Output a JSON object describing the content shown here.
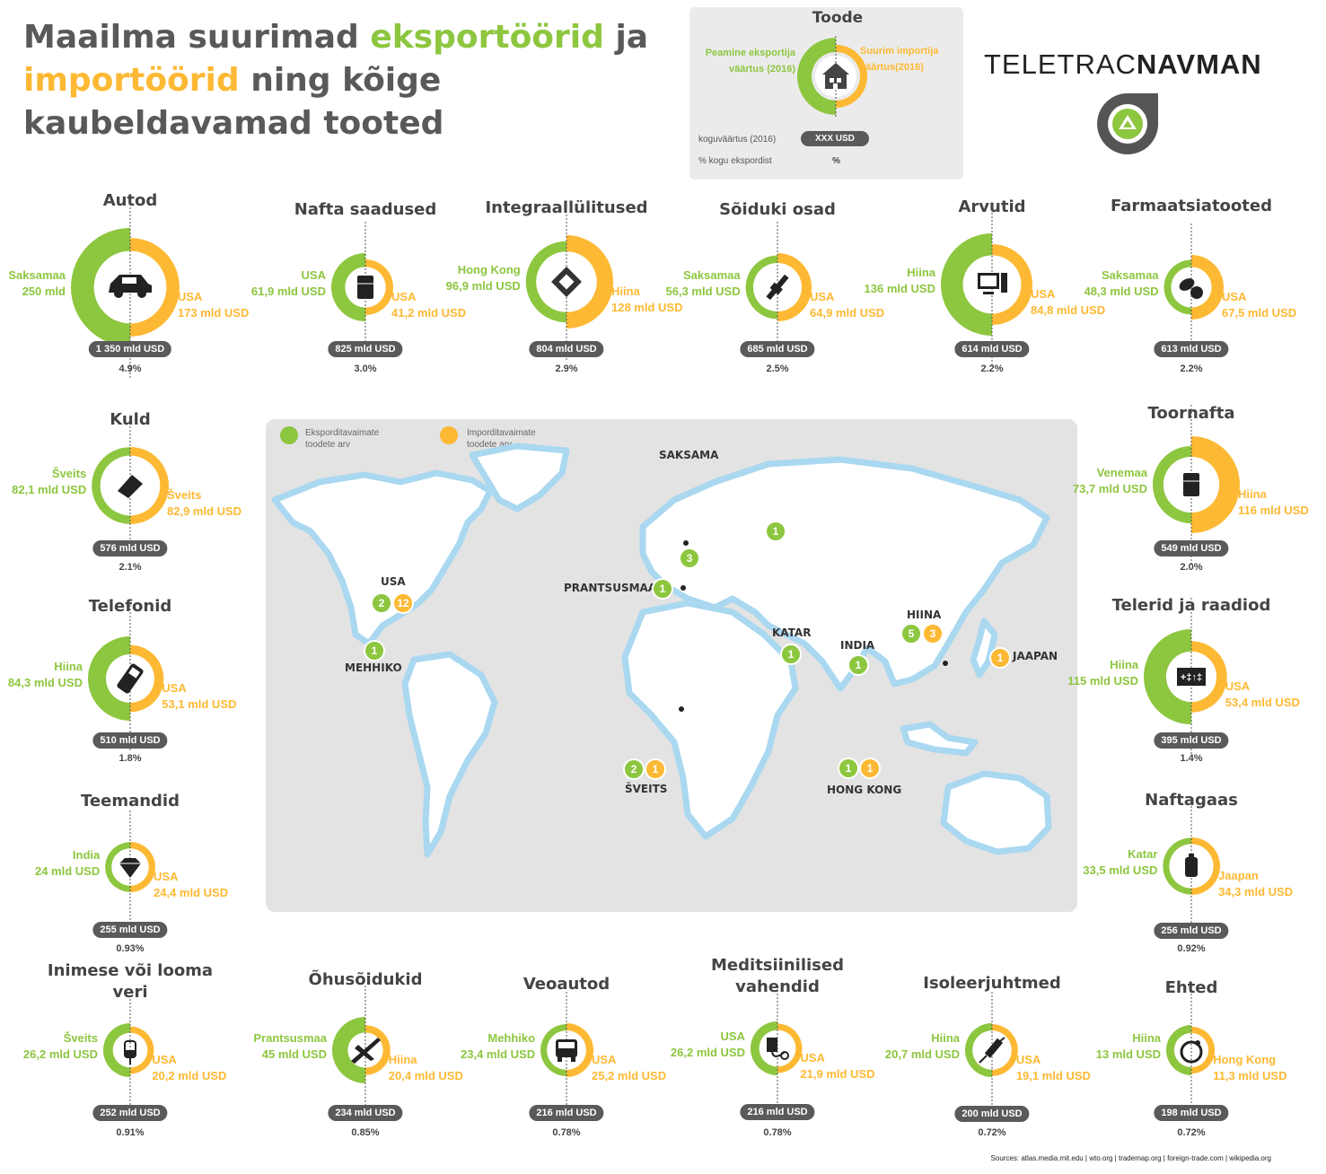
{
  "title": {
    "part1": "Maailma suurimad ",
    "exporters": "eksportöörid",
    "part2": " ja ",
    "importers": "importöörid",
    "part3": " ning kõige kaubeldavamad tooted"
  },
  "legend": {
    "heading": "Toode",
    "export_label": "Peamine eksportija väärtus (2016)",
    "import_label": "Suurim importija väärtus(2016)",
    "total_label": "koguväärtus (2016)",
    "total_value": "XXX USD",
    "share_label": "% kogu ekspordist",
    "share_value": "%",
    "icon": "house-icon"
  },
  "brand": {
    "part1": "TELETRAC",
    "part2": "NAVMAN"
  },
  "colors": {
    "export": "#8dc63f",
    "import": "#fdb933",
    "pill": "#5a5a5a",
    "ocean_glow": "#a9d8f0"
  },
  "products": [
    {
      "title": "Autod",
      "exp_name": "Saksamaa",
      "exp_value": "250 mld",
      "imp_name": "USA",
      "imp_value": "173 mld USD",
      "total": "1 350 mld USD",
      "share": "4.9%",
      "icon": "car-icon"
    },
    {
      "title": "Nafta saadused",
      "exp_name": "USA",
      "exp_value": "61,9 mld USD",
      "imp_name": "USA",
      "imp_value": "41,2 mld USD",
      "total": "825 mld USD",
      "share": "3.0%",
      "icon": "barrel-icon"
    },
    {
      "title": "Integraallülitused",
      "exp_name": "Hong Kong",
      "exp_value": "96,9 mld USD",
      "imp_name": "Hiina",
      "imp_value": "128 mld USD",
      "total": "804 mld USD",
      "share": "2.9%",
      "icon": "chip-icon"
    },
    {
      "title": "Sõiduki osad",
      "exp_name": "Saksamaa",
      "exp_value": "56,3 mld USD",
      "imp_name": "USA",
      "imp_value": "64,9 mld USD",
      "total": "685 mld USD",
      "share": "2.5%",
      "icon": "spark-plug-icon"
    },
    {
      "title": "Arvutid",
      "exp_name": "Hiina",
      "exp_value": "136 mld USD",
      "imp_name": "USA",
      "imp_value": "84,8 mld USD",
      "total": "614 mld USD",
      "share": "2.2%",
      "icon": "computer-icon"
    },
    {
      "title": "Farmaatsiatooted",
      "exp_name": "Saksamaa",
      "exp_value": "48,3 mld USD",
      "imp_name": "USA",
      "imp_value": "67,5 mld USD",
      "total": "613 mld USD",
      "share": "2.2%",
      "icon": "pills-icon"
    },
    {
      "title": "Kuld",
      "exp_name": "Šveits",
      "exp_value": "82,1 mld USD",
      "imp_name": "Šveits",
      "imp_value": "82,9 mld USD",
      "total": "576 mld USD",
      "share": "2.1%",
      "icon": "gold-bar-icon"
    },
    {
      "title": "Toornafta",
      "exp_name": "Venemaa",
      "exp_value": "73,7 mld USD",
      "imp_name": "Hiina",
      "imp_value": "116 mld USD",
      "total": "549 mld USD",
      "share": "2.0%",
      "icon": "oil-drum-icon"
    },
    {
      "title": "Telefonid",
      "exp_name": "Hiina",
      "exp_value": "84,3 mld USD",
      "imp_name": "USA",
      "imp_value": "53,1 mld USD",
      "total": "510 mld USD",
      "share": "1.8%",
      "icon": "phone-icon"
    },
    {
      "title": "Telerid ja raadiod",
      "exp_name": "Hiina",
      "exp_value": "115 mld USD",
      "imp_name": "USA",
      "imp_value": "53,4 mld USD",
      "total": "395 mld USD",
      "share": "1.4%",
      "icon": "radio-icon"
    },
    {
      "title": "Teemandid",
      "exp_name": "India",
      "exp_value": "24 mld USD",
      "imp_name": "USA",
      "imp_value": "24,4 mld USD",
      "total": "255 mld USD",
      "share": "0.93%",
      "icon": "diamond-icon"
    },
    {
      "title": "Naftagaas",
      "exp_name": "Katar",
      "exp_value": "33,5 mld USD",
      "imp_name": "Jaapan",
      "imp_value": "34,3 mld USD",
      "total": "256 mld USD",
      "share": "0.92%",
      "icon": "gas-tank-icon"
    },
    {
      "title": "Inimese või looma\nveri",
      "exp_name": "Šveits",
      "exp_value": "26,2 mld USD",
      "imp_name": "USA",
      "imp_value": "20,2 mld USD",
      "total": "252 mld USD",
      "share": "0.91%",
      "icon": "blood-bag-icon"
    },
    {
      "title": "Õhusõidukid",
      "exp_name": "Prantsusmaa",
      "exp_value": "45 mld USD",
      "imp_name": "Hiina",
      "imp_value": "20,4 mld USD",
      "total": "234 mld USD",
      "share": "0.85%",
      "icon": "airplane-icon"
    },
    {
      "title": "Veoautod",
      "exp_name": "Mehhiko",
      "exp_value": "23,4 mld USD",
      "imp_name": "USA",
      "imp_value": "25,2 mld USD",
      "total": "216 mld USD",
      "share": "0.78%",
      "icon": "truck-icon"
    },
    {
      "title": "Meditsiinilised\nvahendid",
      "exp_name": "USA",
      "exp_value": "26,2 mld USD",
      "imp_name": "USA",
      "imp_value": "21,9 mld USD",
      "total": "216 mld USD",
      "share": "0.78%",
      "icon": "blood-pressure-icon"
    },
    {
      "title": "Isoleerjuhtmed",
      "exp_name": "Hiina",
      "exp_value": "20,7 mld USD",
      "imp_name": "USA",
      "imp_value": "19,1 mld USD",
      "total": "200 mld USD",
      "share": "0.72%",
      "icon": "cable-icon"
    },
    {
      "title": "Ehted",
      "exp_name": "Hiina",
      "exp_value": "13 mld USD",
      "imp_name": "Hong Kong",
      "imp_value": "11,3 mld USD",
      "total": "198 mld USD",
      "share": "0.72%",
      "icon": "ring-icon"
    }
  ],
  "map": {
    "legend_export": "Eksporditavaimate toodete arv",
    "legend_import": "Imporditavaimate toodete arv",
    "markers": [
      {
        "country": "SAKSAMA",
        "export": "3",
        "import": ""
      },
      {
        "country": "PRANTSUSMAA",
        "export": "1",
        "import": ""
      },
      {
        "country": "USA",
        "export": "2",
        "import": "12"
      },
      {
        "country": "MEHHIKO",
        "export": "1",
        "import": ""
      },
      {
        "country": "KATAR",
        "export": "1",
        "import": ""
      },
      {
        "country": "INDIA",
        "export": "1",
        "import": ""
      },
      {
        "country": "HIINA",
        "export": "5",
        "import": "3"
      },
      {
        "country": "JAAPAN",
        "export": "",
        "import": "1"
      },
      {
        "country": "ŠVEITS",
        "export": "2",
        "import": "1"
      },
      {
        "country": "HONG KONG",
        "export": "1",
        "import": "1"
      },
      {
        "country": "",
        "export": "1",
        "import": ""
      }
    ]
  },
  "sources": "Sources: atlas.media.mit.edu  |  wto.org  |  trademap.org  |  foreign-trade.com  |  wikipedia.org"
}
